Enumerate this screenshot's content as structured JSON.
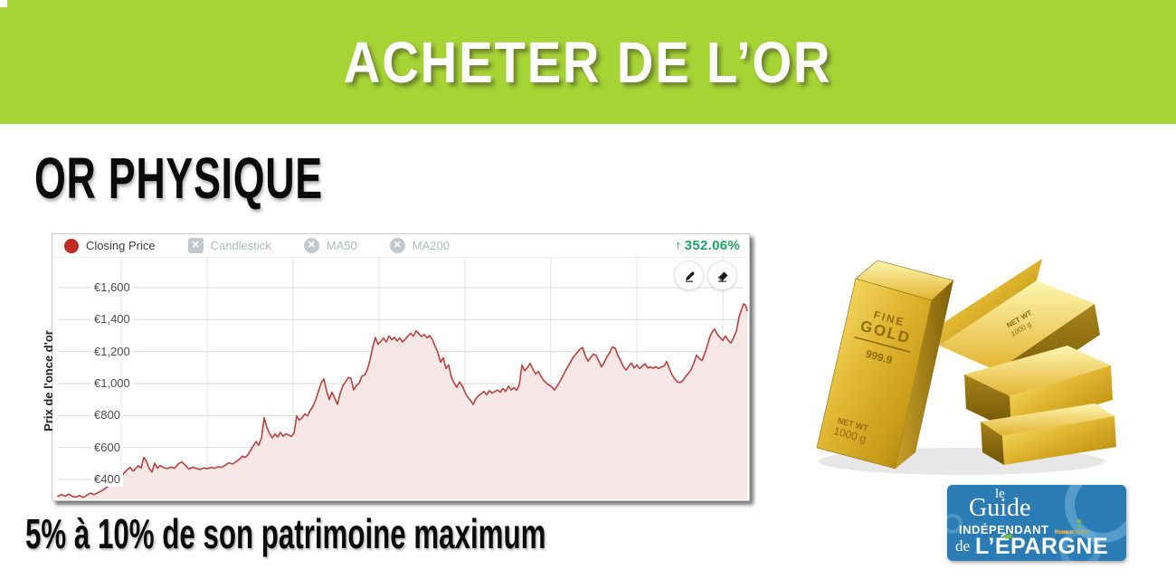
{
  "banner": {
    "title": "ACHETER DE L’OR",
    "bg_color": "#a6d434"
  },
  "section": {
    "heading": "OR PHYSIQUE",
    "footer_note": "5% à 10% de son patrimoine maximum"
  },
  "chart": {
    "legend": [
      {
        "label": "Closing Price",
        "icon": "red-dot",
        "color": "#c32a21",
        "active": true
      },
      {
        "label": "Candlestick",
        "icon": "square-toggle",
        "glyph": "✕",
        "active": false
      },
      {
        "label": "MA50",
        "icon": "circle-toggle",
        "glyph": "✕",
        "active": false
      },
      {
        "label": "MA200",
        "icon": "circle-toggle",
        "glyph": "✕",
        "active": false
      }
    ],
    "change_badge": {
      "arrow": "↑",
      "text": "352.06%",
      "color": "#1fa263"
    },
    "tools": [
      "pencil-icon",
      "eraser-icon"
    ],
    "y_axis_title": "Prix de l'once d'or",
    "y_ticks": [
      "€1,600",
      "€1,400",
      "€1,200",
      "€1,000",
      "€800",
      "€600",
      "€400"
    ]
  },
  "chart_data": {
    "type": "area",
    "title": "",
    "xlabel": "",
    "ylabel": "Prix de l'once d'or",
    "ylim": [
      300,
      1700
    ],
    "y_tick_values": [
      1600,
      1400,
      1200,
      1000,
      800,
      600,
      400
    ],
    "x_axis_labels_visible": false,
    "grid": true,
    "total_change_percent": "352.06%",
    "line_color": "#b9413e",
    "fill_color": "#f7e8e7",
    "currency": "EUR",
    "points": [
      [
        63,
        295
      ],
      [
        67,
        305
      ],
      [
        71,
        296
      ],
      [
        75,
        308
      ],
      [
        79,
        294
      ],
      [
        83,
        290
      ],
      [
        87,
        299
      ],
      [
        91,
        288
      ],
      [
        95,
        302
      ],
      [
        99,
        314
      ],
      [
        103,
        306
      ],
      [
        107,
        316
      ],
      [
        111,
        328
      ],
      [
        115,
        342
      ],
      [
        119,
        358
      ],
      [
        123,
        368
      ],
      [
        127,
        392
      ],
      [
        131,
        410
      ],
      [
        135,
        432
      ],
      [
        139,
        458
      ],
      [
        143,
        476
      ],
      [
        146,
        452
      ],
      [
        149,
        468
      ],
      [
        152,
        486
      ],
      [
        155,
        470
      ],
      [
        158,
        538
      ],
      [
        161,
        512
      ],
      [
        164,
        468
      ],
      [
        167,
        446
      ],
      [
        170,
        502
      ],
      [
        173,
        470
      ],
      [
        176,
        488
      ],
      [
        180,
        474
      ],
      [
        184,
        468
      ],
      [
        188,
        478
      ],
      [
        192,
        470
      ],
      [
        196,
        497
      ],
      [
        200,
        510
      ],
      [
        204,
        487
      ],
      [
        208,
        464
      ],
      [
        212,
        477
      ],
      [
        216,
        469
      ],
      [
        220,
        462
      ],
      [
        224,
        472
      ],
      [
        228,
        467
      ],
      [
        232,
        476
      ],
      [
        236,
        470
      ],
      [
        240,
        479
      ],
      [
        244,
        476
      ],
      [
        248,
        489
      ],
      [
        252,
        504
      ],
      [
        256,
        497
      ],
      [
        260,
        511
      ],
      [
        264,
        528
      ],
      [
        267,
        546
      ],
      [
        270,
        538
      ],
      [
        273,
        554
      ],
      [
        276,
        582
      ],
      [
        279,
        610
      ],
      [
        282,
        638
      ],
      [
        285,
        614
      ],
      [
        288,
        658
      ],
      [
        291,
        786
      ],
      [
        294,
        726
      ],
      [
        297,
        688
      ],
      [
        300,
        660
      ],
      [
        303,
        684
      ],
      [
        306,
        666
      ],
      [
        309,
        694
      ],
      [
        312,
        670
      ],
      [
        315,
        686
      ],
      [
        318,
        678
      ],
      [
        321,
        670
      ],
      [
        324,
        688
      ],
      [
        327,
        798
      ],
      [
        330,
        770
      ],
      [
        333,
        788
      ],
      [
        336,
        810
      ],
      [
        339,
        798
      ],
      [
        342,
        832
      ],
      [
        345,
        858
      ],
      [
        348,
        898
      ],
      [
        351,
        952
      ],
      [
        354,
        1002
      ],
      [
        357,
        1030
      ],
      [
        360,
        956
      ],
      [
        363,
        900
      ],
      [
        366,
        946
      ],
      [
        369,
        910
      ],
      [
        372,
        870
      ],
      [
        375,
        938
      ],
      [
        378,
        986
      ],
      [
        381,
        1010
      ],
      [
        384,
        1038
      ],
      [
        387,
        1032
      ],
      [
        390,
        960
      ],
      [
        393,
        988
      ],
      [
        396,
        1002
      ],
      [
        399,
        1046
      ],
      [
        402,
        1052
      ],
      [
        405,
        1086
      ],
      [
        408,
        1148
      ],
      [
        411,
        1228
      ],
      [
        414,
        1288
      ],
      [
        417,
        1246
      ],
      [
        420,
        1264
      ],
      [
        423,
        1284
      ],
      [
        426,
        1260
      ],
      [
        429,
        1298
      ],
      [
        432,
        1274
      ],
      [
        435,
        1290
      ],
      [
        438,
        1266
      ],
      [
        441,
        1286
      ],
      [
        444,
        1260
      ],
      [
        447,
        1278
      ],
      [
        450,
        1298
      ],
      [
        453,
        1316
      ],
      [
        456,
        1296
      ],
      [
        459,
        1330
      ],
      [
        462,
        1312
      ],
      [
        465,
        1294
      ],
      [
        468,
        1306
      ],
      [
        471,
        1286
      ],
      [
        474,
        1300
      ],
      [
        477,
        1276
      ],
      [
        480,
        1234
      ],
      [
        483,
        1196
      ],
      [
        486,
        1134
      ],
      [
        489,
        1160
      ],
      [
        492,
        1094
      ],
      [
        495,
        1116
      ],
      [
        498,
        1040
      ],
      [
        501,
        1004
      ],
      [
        504,
        976
      ],
      [
        507,
        1010
      ],
      [
        510,
        986
      ],
      [
        513,
        946
      ],
      [
        516,
        916
      ],
      [
        519,
        896
      ],
      [
        522,
        870
      ],
      [
        525,
        904
      ],
      [
        528,
        924
      ],
      [
        531,
        936
      ],
      [
        534,
        950
      ],
      [
        537,
        930
      ],
      [
        540,
        956
      ],
      [
        543,
        940
      ],
      [
        546,
        950
      ],
      [
        549,
        960
      ],
      [
        552,
        946
      ],
      [
        555,
        970
      ],
      [
        558,
        950
      ],
      [
        561,
        984
      ],
      [
        564,
        960
      ],
      [
        567,
        974
      ],
      [
        570,
        958
      ],
      [
        573,
        990
      ],
      [
        576,
        1116
      ],
      [
        579,
        1080
      ],
      [
        582,
        1100
      ],
      [
        585,
        1126
      ],
      [
        588,
        1090
      ],
      [
        591,
        1060
      ],
      [
        594,
        1076
      ],
      [
        597,
        1046
      ],
      [
        600,
        1020
      ],
      [
        604,
        998
      ],
      [
        608,
        984
      ],
      [
        612,
        960
      ],
      [
        616,
        994
      ],
      [
        620,
        1034
      ],
      [
        624,
        1078
      ],
      [
        628,
        1118
      ],
      [
        632,
        1158
      ],
      [
        636,
        1188
      ],
      [
        640,
        1214
      ],
      [
        643,
        1226
      ],
      [
        646,
        1174
      ],
      [
        649,
        1140
      ],
      [
        652,
        1164
      ],
      [
        655,
        1184
      ],
      [
        658,
        1176
      ],
      [
        661,
        1140
      ],
      [
        664,
        1104
      ],
      [
        667,
        1134
      ],
      [
        670,
        1168
      ],
      [
        673,
        1194
      ],
      [
        676,
        1228
      ],
      [
        679,
        1222
      ],
      [
        682,
        1178
      ],
      [
        685,
        1144
      ],
      [
        688,
        1108
      ],
      [
        691,
        1084
      ],
      [
        694,
        1108
      ],
      [
        697,
        1128
      ],
      [
        700,
        1098
      ],
      [
        703,
        1116
      ],
      [
        706,
        1094
      ],
      [
        709,
        1108
      ],
      [
        712,
        1124
      ],
      [
        715,
        1098
      ],
      [
        718,
        1104
      ],
      [
        721,
        1096
      ],
      [
        724,
        1106
      ],
      [
        727,
        1094
      ],
      [
        730,
        1104
      ],
      [
        733,
        1110
      ],
      [
        736,
        1138
      ],
      [
        739,
        1094
      ],
      [
        742,
        1054
      ],
      [
        745,
        1028
      ],
      [
        748,
        1010
      ],
      [
        751,
        1006
      ],
      [
        754,
        1020
      ],
      [
        757,
        1046
      ],
      [
        760,
        1064
      ],
      [
        763,
        1088
      ],
      [
        766,
        1128
      ],
      [
        769,
        1178
      ],
      [
        772,
        1158
      ],
      [
        775,
        1144
      ],
      [
        778,
        1188
      ],
      [
        781,
        1238
      ],
      [
        784,
        1298
      ],
      [
        787,
        1330
      ],
      [
        789,
        1340
      ],
      [
        792,
        1308
      ],
      [
        795,
        1288
      ],
      [
        798,
        1270
      ],
      [
        801,
        1298
      ],
      [
        804,
        1270
      ],
      [
        807,
        1254
      ],
      [
        810,
        1288
      ],
      [
        813,
        1328
      ],
      [
        816,
        1418
      ],
      [
        819,
        1468
      ],
      [
        821,
        1498
      ],
      [
        823,
        1492
      ],
      [
        825,
        1456
      ]
    ]
  },
  "gold_image": {
    "bar_text_line1": "FINE",
    "bar_text_line2": "GOLD",
    "purity": "999.9",
    "weight_label": "NET WT",
    "weight_value": "1000 g"
  },
  "logo": {
    "word_le": "le",
    "word_guide": "Guide",
    "word_independant": "INDÉPENDANT",
    "word_de": "de",
    "word_epargne": "L’ÉPARGNE",
    "site_part1": "France",
    "site_part2": "Transactions",
    "site_part3": ".com",
    "bg_color": "#2b7cb4",
    "accent_color": "#7fc42e"
  }
}
